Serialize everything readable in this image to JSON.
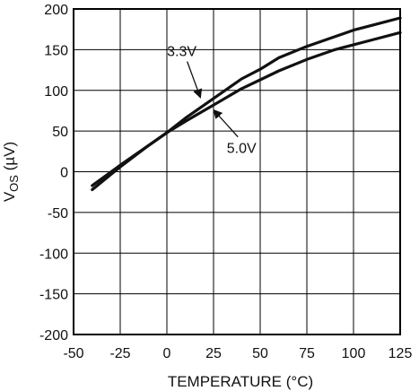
{
  "chart_data": {
    "type": "line",
    "xlabel": "TEMPERATURE (°C)",
    "ylabel_main": "V",
    "ylabel_sub": "OS",
    "ylabel_unit": " (µV)",
    "xlim": [
      -50,
      125
    ],
    "ylim": [
      -200,
      200
    ],
    "x_ticks": [
      -50,
      -25,
      0,
      25,
      50,
      75,
      100,
      125
    ],
    "y_ticks": [
      -200,
      -150,
      -100,
      -50,
      0,
      50,
      100,
      150,
      200
    ],
    "grid": true,
    "series": [
      {
        "name": "3.3V",
        "x": [
          -40,
          -25,
          -10,
          0,
          10,
          25,
          40,
          50,
          60,
          75,
          90,
          100,
          110,
          125
        ],
        "y": [
          -22,
          6,
          32,
          48,
          66,
          90,
          114,
          126,
          140,
          154,
          166,
          174,
          180,
          189
        ]
      },
      {
        "name": "5.0V",
        "x": [
          -40,
          -25,
          -10,
          0,
          10,
          25,
          40,
          50,
          60,
          75,
          90,
          100,
          110,
          125
        ],
        "y": [
          -17,
          8,
          32,
          48,
          62,
          82,
          102,
          113,
          124,
          138,
          150,
          156,
          162,
          171
        ]
      }
    ],
    "annotations": [
      {
        "text": "3.3V",
        "series": "3.3V",
        "label_x": 8,
        "label_y": 142,
        "arrow_to_x": 18,
        "arrow_to_y": 91
      },
      {
        "text": "5.0V",
        "series": "5.0V",
        "label_x": 40,
        "label_y": 23,
        "arrow_to_x": 25,
        "arrow_to_y": 76
      }
    ]
  }
}
